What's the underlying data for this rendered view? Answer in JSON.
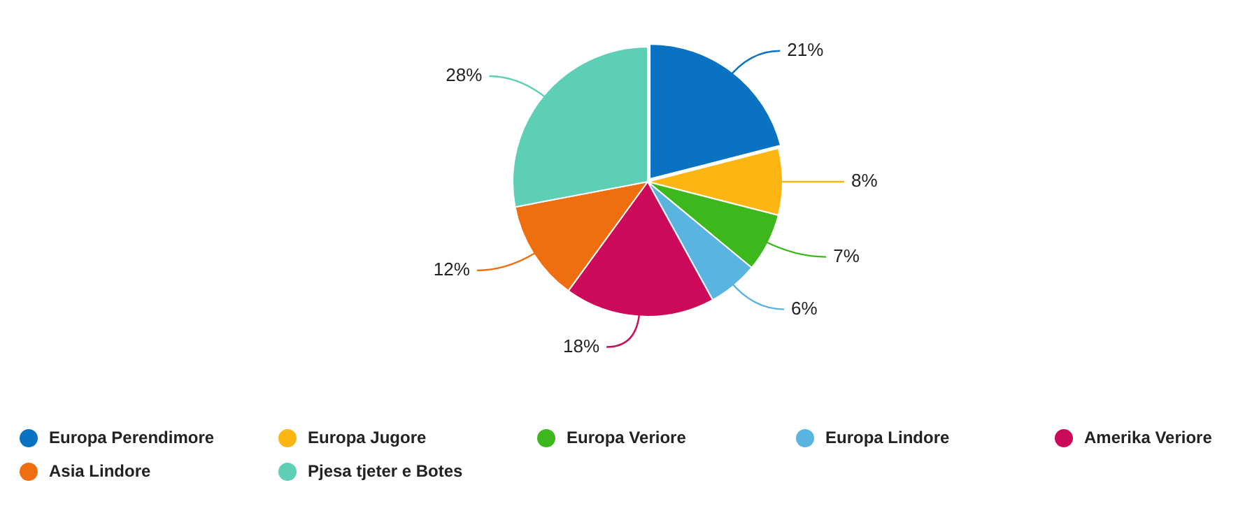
{
  "chart_data": {
    "type": "pie",
    "categories": [
      "Europa Perendimore",
      "Europa Jugore",
      "Europa Veriore",
      "Europa Lindore",
      "Amerika Veriore",
      "Asia Lindore",
      "Pjesa tjeter e Botes"
    ],
    "values": [
      21,
      8,
      7,
      6,
      18,
      12,
      28
    ],
    "colors": [
      "#0a72c2",
      "#fbb614",
      "#3cb81c",
      "#5ab4e0",
      "#cc0a5a",
      "#ee6e10",
      "#5ccfb5"
    ],
    "value_labels": [
      "21%",
      "8%",
      "7%",
      "6%",
      "18%",
      "12%",
      "28%"
    ],
    "legend": "bottom"
  }
}
